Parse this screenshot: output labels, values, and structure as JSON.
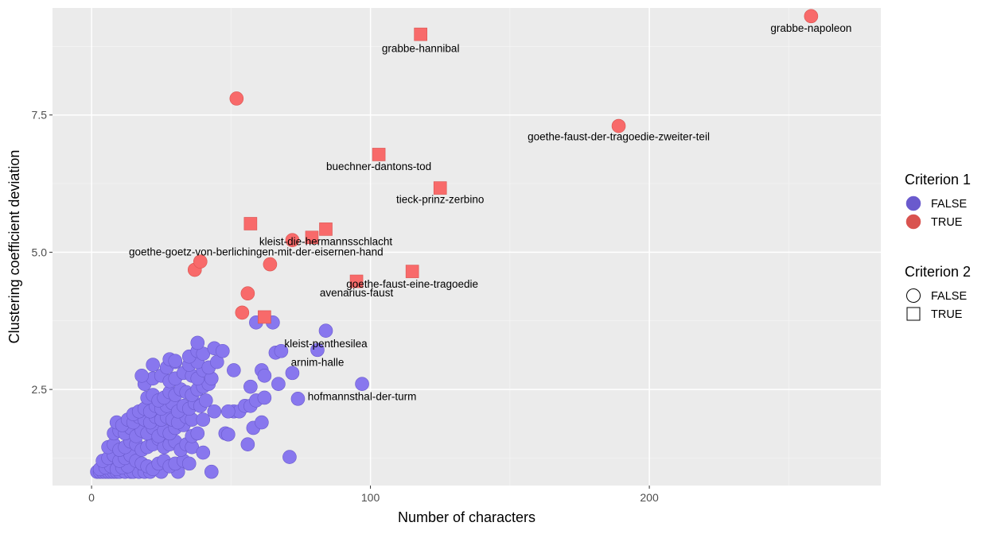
{
  "chart_data": {
    "type": "scatter",
    "title": "",
    "xlabel": "Number of characters",
    "ylabel": "Clustering coefficient deviation",
    "xlim": [
      -14,
      283
    ],
    "ylim": [
      0.75,
      9.45
    ],
    "x_ticks": [
      0,
      100,
      200
    ],
    "y_ticks": [
      2.5,
      5.0,
      7.5
    ],
    "x_tick_labels": [
      "0",
      "100",
      "200"
    ],
    "y_tick_labels": [
      "2.5",
      "5.0",
      "7.5"
    ],
    "grid": true,
    "legend_position": "right",
    "legends": [
      {
        "title": "Criterion 1",
        "encoding": "color",
        "entries": [
          {
            "label": "FALSE",
            "color": "#6a5acd"
          },
          {
            "label": "TRUE",
            "color": "#d9534f"
          }
        ]
      },
      {
        "title": "Criterion 2",
        "encoding": "shape",
        "entries": [
          {
            "label": "FALSE",
            "shape": "circle"
          },
          {
            "label": "TRUE",
            "shape": "square"
          }
        ]
      }
    ],
    "colors": {
      "false_fill": "#8877ee",
      "false_stroke": "#6a5acd",
      "true_fill": "#f86a6a",
      "true_stroke": "#d9534f"
    },
    "series": [
      {
        "criterion1": "FALSE",
        "criterion2": "FALSE",
        "points": [
          [
            2,
            1.0
          ],
          [
            3,
            1.0
          ],
          [
            4,
            1.0
          ],
          [
            5,
            1.0
          ],
          [
            6,
            1.0
          ],
          [
            7,
            1.0
          ],
          [
            8,
            1.0
          ],
          [
            9,
            1.0
          ],
          [
            10,
            1.0
          ],
          [
            12,
            1.0
          ],
          [
            14,
            1.0
          ],
          [
            15,
            1.0
          ],
          [
            17,
            1.0
          ],
          [
            19,
            1.0
          ],
          [
            21,
            1.0
          ],
          [
            25,
            1.0
          ],
          [
            31,
            1.0
          ],
          [
            43,
            1.0
          ],
          [
            3,
            1.05
          ],
          [
            5,
            1.08
          ],
          [
            7,
            1.1
          ],
          [
            9,
            1.05
          ],
          [
            11,
            1.08
          ],
          [
            13,
            1.1
          ],
          [
            4,
            1.2
          ],
          [
            6,
            1.25
          ],
          [
            8,
            1.3
          ],
          [
            10,
            1.2
          ],
          [
            12,
            1.25
          ],
          [
            14,
            1.3
          ],
          [
            16,
            1.2
          ],
          [
            18,
            1.15
          ],
          [
            20,
            1.1
          ],
          [
            22,
            1.05
          ],
          [
            24,
            1.15
          ],
          [
            26,
            1.2
          ],
          [
            28,
            1.1
          ],
          [
            30,
            1.15
          ],
          [
            33,
            1.2
          ],
          [
            35,
            1.15
          ],
          [
            6,
            1.45
          ],
          [
            8,
            1.5
          ],
          [
            10,
            1.4
          ],
          [
            12,
            1.45
          ],
          [
            14,
            1.55
          ],
          [
            16,
            1.5
          ],
          [
            18,
            1.4
          ],
          [
            20,
            1.45
          ],
          [
            22,
            1.5
          ],
          [
            24,
            1.6
          ],
          [
            26,
            1.45
          ],
          [
            28,
            1.5
          ],
          [
            30,
            1.55
          ],
          [
            32,
            1.4
          ],
          [
            34,
            1.5
          ],
          [
            36,
            1.45
          ],
          [
            40,
            1.35
          ],
          [
            8,
            1.7
          ],
          [
            10,
            1.75
          ],
          [
            12,
            1.7
          ],
          [
            14,
            1.8
          ],
          [
            16,
            1.65
          ],
          [
            18,
            1.75
          ],
          [
            20,
            1.7
          ],
          [
            22,
            1.8
          ],
          [
            24,
            1.65
          ],
          [
            26,
            1.75
          ],
          [
            28,
            1.7
          ],
          [
            30,
            1.8
          ],
          [
            33,
            1.85
          ],
          [
            36,
            1.65
          ],
          [
            38,
            1.7
          ],
          [
            48,
            1.7
          ],
          [
            49,
            1.68
          ],
          [
            56,
            1.5
          ],
          [
            9,
            1.9
          ],
          [
            11,
            1.85
          ],
          [
            13,
            1.95
          ],
          [
            15,
            1.9
          ],
          [
            17,
            2.0
          ],
          [
            19,
            1.95
          ],
          [
            21,
            1.9
          ],
          [
            23,
            2.0
          ],
          [
            25,
            1.95
          ],
          [
            27,
            2.0
          ],
          [
            29,
            1.95
          ],
          [
            31,
            1.9
          ],
          [
            34,
            2.0
          ],
          [
            36,
            1.95
          ],
          [
            40,
            1.95
          ],
          [
            44,
            2.1
          ],
          [
            51,
            2.1
          ],
          [
            53,
            2.1
          ],
          [
            58,
            1.8
          ],
          [
            61,
            1.9
          ],
          [
            15,
            2.05
          ],
          [
            17,
            2.1
          ],
          [
            19,
            2.15
          ],
          [
            21,
            2.1
          ],
          [
            23,
            2.2
          ],
          [
            25,
            2.15
          ],
          [
            27,
            2.2
          ],
          [
            29,
            2.25
          ],
          [
            31,
            2.1
          ],
          [
            33,
            2.2
          ],
          [
            35,
            2.15
          ],
          [
            37,
            2.25
          ],
          [
            39,
            2.2
          ],
          [
            41,
            2.3
          ],
          [
            49,
            2.1
          ],
          [
            55,
            2.2
          ],
          [
            57,
            2.2
          ],
          [
            59,
            2.3
          ],
          [
            20,
            2.35
          ],
          [
            22,
            2.4
          ],
          [
            24,
            2.3
          ],
          [
            26,
            2.35
          ],
          [
            28,
            2.45
          ],
          [
            30,
            2.4
          ],
          [
            32,
            2.5
          ],
          [
            34,
            2.45
          ],
          [
            36,
            2.4
          ],
          [
            38,
            2.5
          ],
          [
            40,
            2.55
          ],
          [
            42,
            2.6
          ],
          [
            57,
            2.55
          ],
          [
            62,
            2.35
          ],
          [
            67,
            2.6
          ],
          [
            19,
            2.6
          ],
          [
            22,
            2.7
          ],
          [
            25,
            2.75
          ],
          [
            28,
            2.65
          ],
          [
            30,
            2.7
          ],
          [
            33,
            2.8
          ],
          [
            36,
            2.75
          ],
          [
            38,
            2.7
          ],
          [
            40,
            2.85
          ],
          [
            43,
            2.7
          ],
          [
            18,
            2.75
          ],
          [
            22,
            2.95
          ],
          [
            27,
            2.9
          ],
          [
            30,
            3.0
          ],
          [
            35,
            2.95
          ],
          [
            38,
            3.0
          ],
          [
            42,
            2.9
          ],
          [
            45,
            3.0
          ],
          [
            28,
            3.05
          ],
          [
            30,
            3.02
          ],
          [
            35,
            3.1
          ],
          [
            38,
            3.2
          ],
          [
            40,
            3.15
          ],
          [
            44,
            3.25
          ],
          [
            47,
            3.2
          ],
          [
            38,
            3.35
          ],
          [
            51,
            2.85
          ],
          [
            61,
            2.85
          ],
          [
            62,
            2.75
          ],
          [
            72,
            2.8
          ],
          [
            66,
            3.17
          ],
          [
            68,
            3.2
          ],
          [
            81,
            3.22
          ],
          [
            84,
            3.57
          ],
          [
            59,
            3.72
          ],
          [
            65,
            3.72
          ],
          [
            74,
            2.33
          ],
          [
            97,
            2.6
          ],
          [
            71,
            1.27
          ]
        ]
      },
      {
        "criterion1": "TRUE",
        "criterion2": "FALSE",
        "points": [
          [
            52,
            7.8
          ],
          [
            258,
            9.3
          ],
          [
            189,
            7.3
          ],
          [
            37,
            4.68
          ],
          [
            39,
            4.83
          ],
          [
            56,
            4.25
          ],
          [
            54,
            3.9
          ],
          [
            64,
            4.78
          ],
          [
            72,
            5.22
          ]
        ]
      },
      {
        "criterion1": "TRUE",
        "criterion2": "TRUE",
        "points": [
          [
            118,
            8.97
          ],
          [
            103,
            6.78
          ],
          [
            125,
            6.17
          ],
          [
            57,
            5.52
          ],
          [
            79,
            5.27
          ],
          [
            84,
            5.42
          ],
          [
            115,
            4.65
          ],
          [
            95,
            4.47
          ],
          [
            62,
            3.82
          ]
        ]
      }
    ],
    "annotations": [
      {
        "text": "grabbe-napoleon",
        "x": 258,
        "y": 9.09
      },
      {
        "text": "grabbe-hannibal",
        "x": 118,
        "y": 8.72
      },
      {
        "text": "goethe-faust-der-tragoedie-zweiter-teil",
        "x": 189,
        "y": 7.11
      },
      {
        "text": "buechner-dantons-tod",
        "x": 103,
        "y": 6.57
      },
      {
        "text": "tieck-prinz-zerbino",
        "x": 125,
        "y": 5.97
      },
      {
        "text": "kleist-die-hermannsschlacht",
        "x": 84,
        "y": 5.2
      },
      {
        "text": "goethe-goetz-von-berlichingen-mit-der-eisernen-hand",
        "x": 59,
        "y": 5.01
      },
      {
        "text": "goethe-faust-eine-tragoedie",
        "x": 115,
        "y": 4.43
      },
      {
        "text": "avenarius-faust",
        "x": 95,
        "y": 4.27
      },
      {
        "text": "kleist-penthesilea",
        "x": 84,
        "y": 3.34
      },
      {
        "text": "arnim-halle",
        "x": 81,
        "y": 3.0
      },
      {
        "text": "hofmannsthal-der-turm",
        "x": 97,
        "y": 2.38
      }
    ]
  }
}
